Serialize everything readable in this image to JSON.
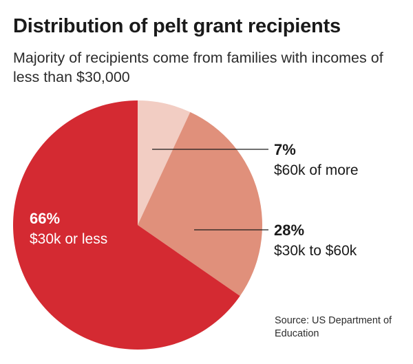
{
  "chart_data": {
    "type": "pie",
    "title": "Distribution of pelt grant recipients",
    "subtitle": "Majority of recipients come from families with incomes of less than $30,000",
    "slices": [
      {
        "label": "$60k of more",
        "value": 7,
        "value_label": "7%",
        "color": "#f2cdc3"
      },
      {
        "label": "$30k to $60k",
        "value": 28,
        "value_label": "28%",
        "color": "#e0907b"
      },
      {
        "label": "$30k or less",
        "value": 66,
        "value_label": "66%",
        "color": "#d42a32"
      }
    ],
    "start": "12 o'clock",
    "direction": "clockwise",
    "source": "Source: US Department of Education"
  }
}
